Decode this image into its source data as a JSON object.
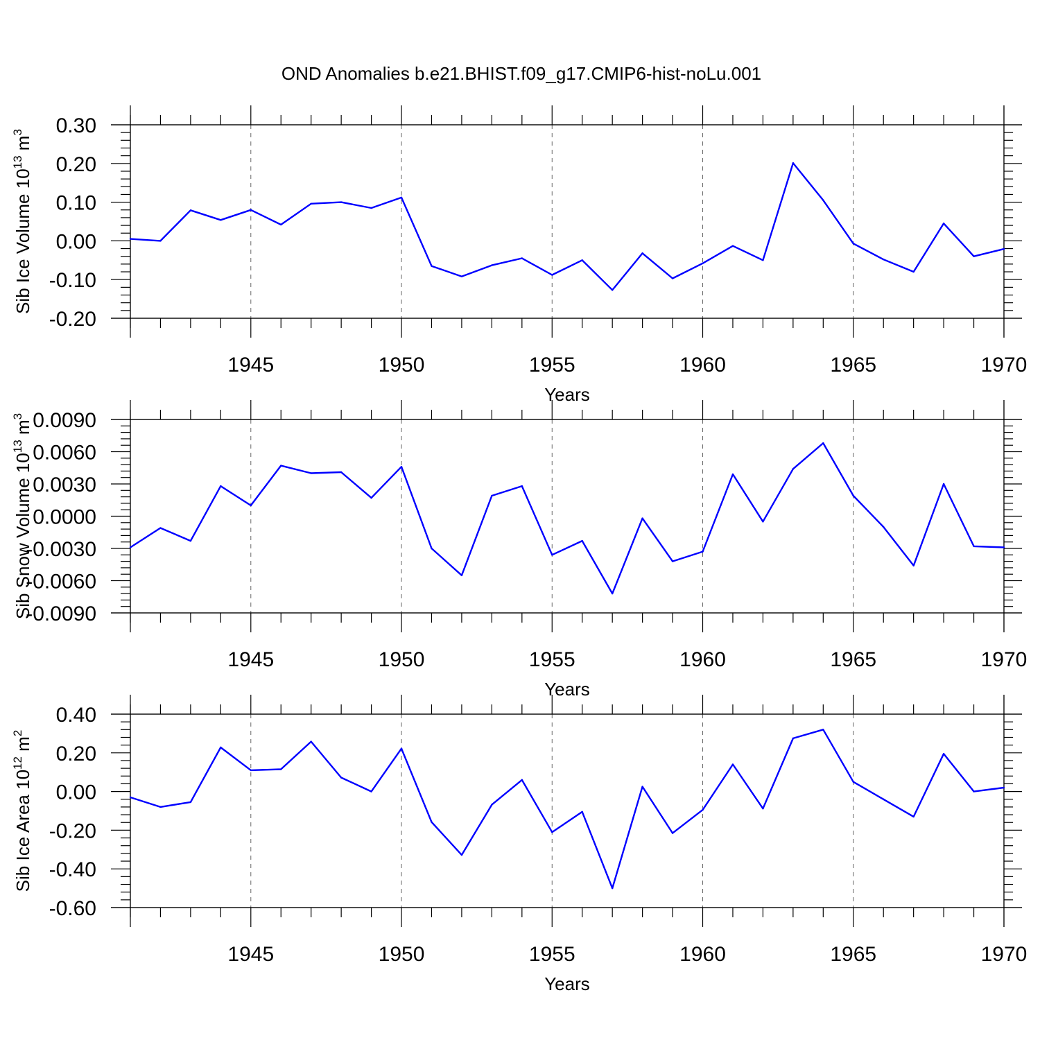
{
  "title": "OND Anomalies b.e21.BHIST.f09_g17.CMIP6-hist-noLu.001",
  "chart_data": [
    {
      "type": "line",
      "title": "OND Anomalies b.e21.BHIST.f09_g17.CMIP6-hist-noLu.001",
      "xlabel": "Years",
      "ylabel": "Sib Ice Volume 10",
      "ylabel_sup": "13",
      "ylabel_unit": "m",
      "ylabel_unit_sup": "3",
      "xlim": [
        1941,
        1970
      ],
      "ylim": [
        -0.2,
        0.3
      ],
      "x_ticks": [
        1945,
        1950,
        1955,
        1960,
        1965,
        1970
      ],
      "y_ticks": [
        -0.2,
        -0.1,
        0.0,
        0.1,
        0.2,
        0.3
      ],
      "y_tick_labels": [
        "-0.20",
        "-0.10",
        "0.00",
        "0.10",
        "0.20",
        "0.30"
      ],
      "grid": "dashed vertical at major x ticks",
      "color": "#0000ff",
      "x": [
        1941,
        1942,
        1943,
        1944,
        1945,
        1946,
        1947,
        1948,
        1949,
        1950,
        1951,
        1952,
        1953,
        1954,
        1955,
        1956,
        1957,
        1958,
        1959,
        1960,
        1961,
        1962,
        1963,
        1964,
        1965,
        1966,
        1967,
        1968,
        1969,
        1970
      ],
      "values": [
        0.005,
        0.0,
        0.079,
        0.054,
        0.08,
        0.042,
        0.096,
        0.1,
        0.085,
        0.112,
        -0.065,
        -0.092,
        -0.063,
        -0.045,
        -0.088,
        -0.05,
        -0.127,
        -0.032,
        -0.097,
        -0.058,
        -0.013,
        -0.05,
        0.201,
        0.105,
        -0.007,
        -0.048,
        -0.08,
        0.045,
        -0.04,
        -0.021
      ]
    },
    {
      "type": "line",
      "xlabel": "Years",
      "ylabel": "Sib Snow Volume 10",
      "ylabel_sup": "13",
      "ylabel_unit": "m",
      "ylabel_unit_sup": "3",
      "xlim": [
        1941,
        1970
      ],
      "ylim": [
        -0.009,
        0.009
      ],
      "x_ticks": [
        1945,
        1950,
        1955,
        1960,
        1965,
        1970
      ],
      "y_ticks": [
        -0.009,
        -0.006,
        -0.003,
        0.0,
        0.003,
        0.006,
        0.009
      ],
      "y_tick_labels": [
        "-0.0090",
        "-0.0060",
        "-0.0030",
        "0.0000",
        "0.0030",
        "0.0060",
        "0.0090"
      ],
      "grid": "dashed vertical at major x ticks",
      "color": "#0000ff",
      "x": [
        1941,
        1942,
        1943,
        1944,
        1945,
        1946,
        1947,
        1948,
        1949,
        1950,
        1951,
        1952,
        1953,
        1954,
        1955,
        1956,
        1957,
        1958,
        1959,
        1960,
        1961,
        1962,
        1963,
        1964,
        1965,
        1966,
        1967,
        1968,
        1969,
        1970
      ],
      "values": [
        -0.0029,
        -0.0011,
        -0.0023,
        0.0028,
        0.001,
        0.0047,
        0.004,
        0.0041,
        0.0017,
        0.0046,
        -0.003,
        -0.0055,
        0.0019,
        0.0028,
        -0.0036,
        -0.0023,
        -0.0072,
        -0.0002,
        -0.0042,
        -0.0033,
        0.0039,
        -0.0005,
        0.0044,
        0.0068,
        0.0019,
        -0.001,
        -0.0046,
        0.003,
        -0.0028,
        -0.0029
      ]
    },
    {
      "type": "line",
      "xlabel": "Years",
      "ylabel": "Sib Ice Area 10",
      "ylabel_sup": "12",
      "ylabel_unit": "m",
      "ylabel_unit_sup": "2",
      "xlim": [
        1941,
        1970
      ],
      "ylim": [
        -0.6,
        0.4
      ],
      "x_ticks": [
        1945,
        1950,
        1955,
        1960,
        1965,
        1970
      ],
      "y_ticks": [
        -0.6,
        -0.4,
        -0.2,
        0.0,
        0.2,
        0.4
      ],
      "y_tick_labels": [
        "-0.60",
        "-0.40",
        "-0.20",
        "0.00",
        "0.20",
        "0.40"
      ],
      "grid": "dashed vertical at major x ticks",
      "color": "#0000ff",
      "x": [
        1941,
        1942,
        1943,
        1944,
        1945,
        1946,
        1947,
        1948,
        1949,
        1950,
        1951,
        1952,
        1953,
        1954,
        1955,
        1956,
        1957,
        1958,
        1959,
        1960,
        1961,
        1962,
        1963,
        1964,
        1965,
        1966,
        1967,
        1968,
        1969,
        1970
      ],
      "values": [
        -0.03,
        -0.08,
        -0.055,
        0.228,
        0.11,
        0.115,
        0.258,
        0.072,
        0.0,
        0.222,
        -0.158,
        -0.328,
        -0.068,
        0.06,
        -0.21,
        -0.105,
        -0.5,
        0.025,
        -0.215,
        -0.095,
        0.14,
        -0.088,
        0.275,
        0.32,
        0.05,
        -0.04,
        -0.13,
        0.195,
        0.0,
        0.02
      ]
    }
  ]
}
